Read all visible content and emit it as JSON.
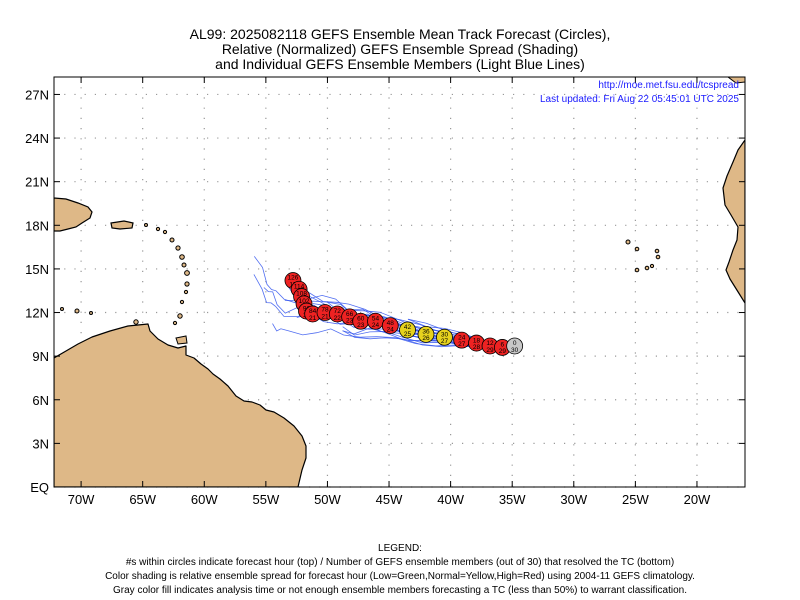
{
  "title": {
    "line1": "AL99: 2025082118 GEFS Ensemble Mean Track Forecast (Circles),",
    "line2": "Relative (Normalized) GEFS Ensemble Spread (Shading)",
    "line3": "and Individual GEFS Ensemble Members (Light Blue Lines)"
  },
  "credit": {
    "url": "http://moe.met.fsu.edu/tcspread",
    "updated": "Last updated: Fri Aug 22 05:45:01 UTC 2025"
  },
  "axes": {
    "x_ticks": [
      {
        "lon": -70,
        "label": "70W"
      },
      {
        "lon": -65,
        "label": "65W"
      },
      {
        "lon": -60,
        "label": "60W"
      },
      {
        "lon": -55,
        "label": "55W"
      },
      {
        "lon": -50,
        "label": "50W"
      },
      {
        "lon": -45,
        "label": "45W"
      },
      {
        "lon": -40,
        "label": "40W"
      },
      {
        "lon": -35,
        "label": "35W"
      },
      {
        "lon": -30,
        "label": "30W"
      },
      {
        "lon": -25,
        "label": "25W"
      },
      {
        "lon": -20,
        "label": "20W"
      }
    ],
    "y_ticks": [
      {
        "lat": 0,
        "label": "EQ"
      },
      {
        "lat": 3,
        "label": "3N"
      },
      {
        "lat": 6,
        "label": "6N"
      },
      {
        "lat": 9,
        "label": "9N"
      },
      {
        "lat": 12,
        "label": "12N"
      },
      {
        "lat": 15,
        "label": "15N"
      },
      {
        "lat": 18,
        "label": "18N"
      },
      {
        "lat": 21,
        "label": "21N"
      },
      {
        "lat": 24,
        "label": "24N"
      },
      {
        "lat": 27,
        "label": "27N"
      }
    ],
    "lon_range": [
      -72.2,
      -16.1
    ],
    "lat_range": [
      0,
      28.2
    ],
    "grid": "dotted"
  },
  "colors": {
    "land": "#DEB887",
    "coast": "#000000",
    "members": "#3355ee",
    "high_spread": "#ee2222",
    "normal_spread": "#e6d21e",
    "analysis": "#c8c8c8"
  },
  "mean_track": [
    {
      "lon": -52.8,
      "lat": 14.2,
      "hour": "126",
      "members": "15",
      "spread": "high"
    },
    {
      "lon": -52.3,
      "lat": 13.6,
      "hour": "114",
      "members": "16",
      "spread": "high"
    },
    {
      "lon": -52.1,
      "lat": 13.1,
      "hour": "108",
      "members": "18",
      "spread": "high"
    },
    {
      "lon": -51.9,
      "lat": 12.6,
      "hour": "102",
      "members": "17",
      "spread": "high"
    },
    {
      "lon": -51.7,
      "lat": 12.1,
      "hour": "96",
      "members": "18",
      "spread": "high"
    },
    {
      "lon": -51.2,
      "lat": 11.9,
      "hour": "84",
      "members": "21",
      "spread": "high"
    },
    {
      "lon": -50.2,
      "lat": 12.0,
      "hour": "78",
      "members": "21",
      "spread": "high"
    },
    {
      "lon": -49.2,
      "lat": 11.9,
      "hour": "72",
      "members": "22",
      "spread": "high"
    },
    {
      "lon": -48.2,
      "lat": 11.7,
      "hour": "66",
      "members": "23",
      "spread": "high"
    },
    {
      "lon": -47.3,
      "lat": 11.4,
      "hour": "60",
      "members": "23",
      "spread": "high"
    },
    {
      "lon": -46.1,
      "lat": 11.4,
      "hour": "54",
      "members": "24",
      "spread": "high"
    },
    {
      "lon": -44.9,
      "lat": 11.1,
      "hour": "48",
      "members": "24",
      "spread": "high"
    },
    {
      "lon": -43.5,
      "lat": 10.8,
      "hour": "42",
      "members": "25",
      "spread": "normal"
    },
    {
      "lon": -42.0,
      "lat": 10.5,
      "hour": "36",
      "members": "26",
      "spread": "normal"
    },
    {
      "lon": -40.5,
      "lat": 10.3,
      "hour": "30",
      "members": "27",
      "spread": "normal"
    },
    {
      "lon": -39.1,
      "lat": 10.1,
      "hour": "24",
      "members": "27",
      "spread": "high"
    },
    {
      "lon": -37.9,
      "lat": 9.9,
      "hour": "18",
      "members": "28",
      "spread": "high"
    },
    {
      "lon": -36.8,
      "lat": 9.7,
      "hour": "12",
      "members": "29",
      "spread": "high"
    },
    {
      "lon": -35.8,
      "lat": 9.6,
      "hour": "6",
      "members": "29",
      "spread": "high"
    },
    {
      "lon": -34.8,
      "lat": 9.7,
      "hour": "0",
      "members": "30",
      "spread": "analysis"
    }
  ],
  "legend": {
    "heading": "LEGEND:",
    "line1": "#s within circles indicate forecast hour (top) / Number of GEFS ensemble members (out of 30) that resolved the TC (bottom)",
    "line2": "Color shading is relative ensemble spread for forecast hour (Low=Green,Normal=Yellow,High=Red) using 2004-11 GEFS climatology.",
    "line3": "Gray color fill indicates analysis time or not enough ensemble members forecasting a TC (less than 50%) to warrant classification."
  }
}
